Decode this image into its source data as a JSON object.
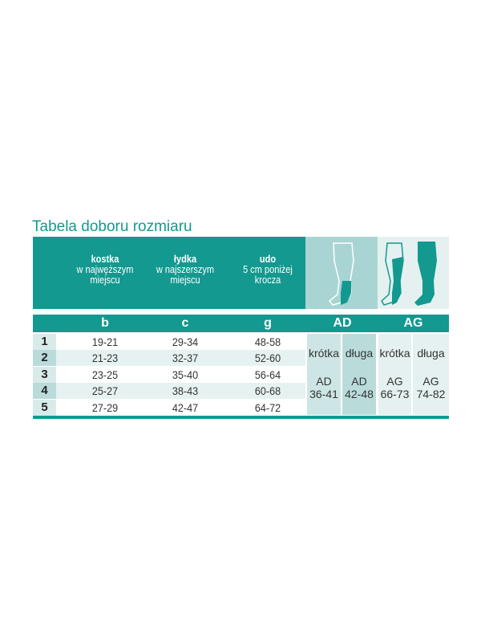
{
  "title": "Tabela doboru rozmiaru",
  "columns": [
    {
      "name": "kostka",
      "desc1": "w najwęższym",
      "desc2": "miejscu",
      "letter": "b"
    },
    {
      "name": "łydka",
      "desc1": "w najszerszym",
      "desc2": "miejscu",
      "letter": "c"
    },
    {
      "name": "udo",
      "desc1": "5 cm poniżej",
      "desc2": "krocza",
      "letter": "g"
    }
  ],
  "groups": {
    "ad": "AD",
    "ag": "AG"
  },
  "rows": [
    {
      "size": "1",
      "b": "19-21",
      "c": "29-34",
      "g": "48-58"
    },
    {
      "size": "2",
      "b": "21-23",
      "c": "32-37",
      "g": "52-60"
    },
    {
      "size": "3",
      "b": "23-25",
      "c": "35-40",
      "g": "56-64"
    },
    {
      "size": "4",
      "b": "25-27",
      "c": "38-43",
      "g": "60-68"
    },
    {
      "size": "5",
      "b": "27-29",
      "c": "42-47",
      "g": "64-72"
    }
  ],
  "lengths": [
    {
      "label": "krótka",
      "code": "AD",
      "range": "36-41"
    },
    {
      "label": "długa",
      "code": "AD",
      "range": "42-48"
    },
    {
      "label": "krótka",
      "code": "AG",
      "range": "66-73"
    },
    {
      "label": "długa",
      "code": "AG",
      "range": "74-82"
    }
  ],
  "colors": {
    "teal": "#13998f",
    "light": "#e4f1f0",
    "mid": "#b9dcdb"
  }
}
